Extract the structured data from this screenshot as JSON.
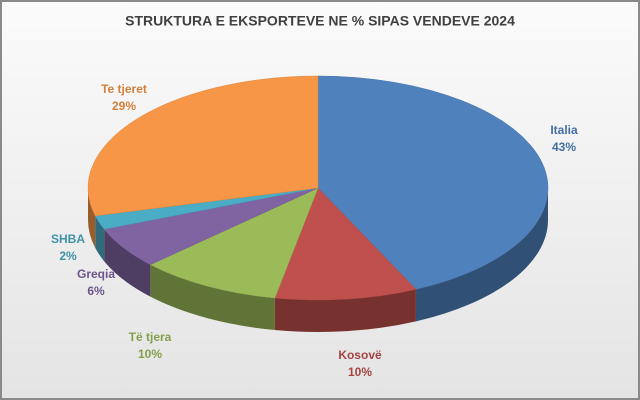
{
  "chart_data": {
    "type": "pie3d",
    "title": "STRUKTURA E EKSPORTEVE NE % SIPAS VENDEVE 2024",
    "categories": [
      "Italia",
      "Kosovë",
      "Të tjera",
      "Greqia",
      "SHBA",
      "Te tjeret"
    ],
    "values": [
      43,
      10,
      10,
      6,
      2,
      29
    ],
    "value_labels": [
      "43%",
      "10%",
      "10%",
      "6%",
      "2%",
      "29%"
    ],
    "colors": [
      "#4f81bd",
      "#c0504d",
      "#9bbb59",
      "#8064a2",
      "#4bacc6",
      "#f79646"
    ]
  }
}
